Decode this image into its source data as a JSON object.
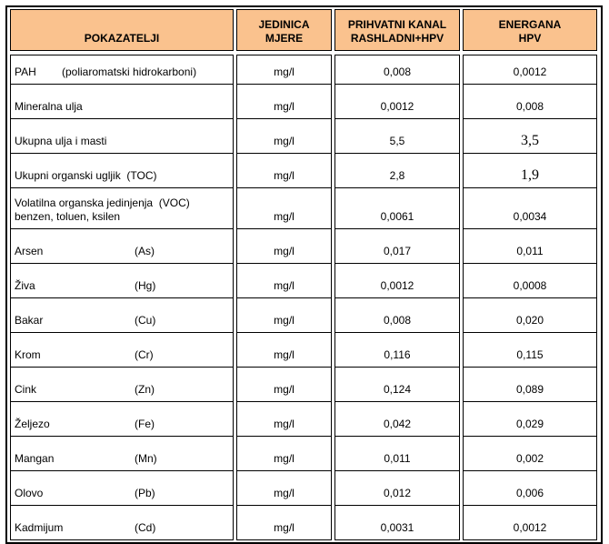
{
  "table": {
    "colors": {
      "header_bg": "#FAC28E",
      "border": "#000000"
    },
    "columns": [
      {
        "label": "POKAZATELJI"
      },
      {
        "label": "JEDINICA\nMJERE"
      },
      {
        "label": "PRIHVATNI KANAL\nRASHLADNI+HPV"
      },
      {
        "label": "ENERGANA\nHPV"
      }
    ],
    "rows": [
      {
        "name": "PAH",
        "symbol": "(poliaromatski hidrokarboni)",
        "unit": "mg/l",
        "prihvatni": "0,008",
        "energana": "0,0012"
      },
      {
        "name": "Mineralna ulja",
        "unit": "mg/l",
        "prihvatni": "0,0012",
        "energana": "0,008"
      },
      {
        "name": "Ukupna ulja i masti",
        "unit": "mg/l",
        "prihvatni": "5,5",
        "energana": "3,5"
      },
      {
        "name": "Ukupni organski ugljik  (TOC)",
        "unit": "mg/l",
        "prihvatni": "2,8",
        "energana": "1,9"
      },
      {
        "name": "Volatilna organska jedinjenja  (VOC)",
        "name2": "benzen, toluen, ksilen",
        "unit": "mg/l",
        "prihvatni": "0,0061",
        "energana": "0,0034"
      },
      {
        "name": "Arsen",
        "symbol": "(As)",
        "unit": "mg/l",
        "prihvatni": "0,017",
        "energana": "0,011"
      },
      {
        "name": "Živa",
        "symbol": "(Hg)",
        "unit": "mg/l",
        "prihvatni": "0,0012",
        "energana": "0,0008"
      },
      {
        "name": "Bakar",
        "symbol": "(Cu)",
        "unit": "mg/l",
        "prihvatni": "0,008",
        "energana": "0,020"
      },
      {
        "name": "Krom",
        "symbol": "(Cr)",
        "unit": "mg/l",
        "prihvatni": "0,116",
        "energana": "0,115"
      },
      {
        "name": "Cink",
        "symbol": "(Zn)",
        "unit": "mg/l",
        "prihvatni": "0,124",
        "energana": "0,089"
      },
      {
        "name": "Željezo",
        "symbol": "(Fe)",
        "unit": "mg/l",
        "prihvatni": "0,042",
        "energana": "0,029"
      },
      {
        "name": "Mangan",
        "symbol": "(Mn)",
        "unit": "mg/l",
        "prihvatni": "0,011",
        "energana": "0,002"
      },
      {
        "name": "Olovo",
        "symbol": "(Pb)",
        "unit": "mg/l",
        "prihvatni": "0,012",
        "energana": "0,006"
      },
      {
        "name": "Kadmijum",
        "symbol": "(Cd)",
        "unit": "mg/l",
        "prihvatni": "0,0031",
        "energana": "0,0012"
      }
    ]
  }
}
